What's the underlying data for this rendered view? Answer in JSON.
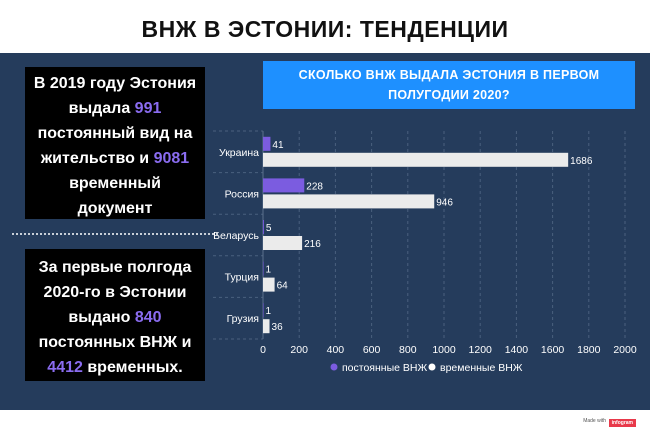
{
  "page": {
    "title": "ВНЖ В ЭСТОНИИ: ТЕНДЕНЦИИ"
  },
  "fact1": {
    "p1": "В 2019 году Эстония",
    "p2": "выдала ",
    "n1": "991",
    "p3": "постоянный вид на",
    "p4": "жительство и ",
    "n2": "9081",
    "p5": "временный",
    "p6": "документ"
  },
  "fact2": {
    "p1": "За первые полгода",
    "p2": "2020-го в Эстонии",
    "p3": "выдано ",
    "n1": "840",
    "p4": "постоянных ВНЖ и",
    "n2": "4412",
    "p5": " временных."
  },
  "chart_data": {
    "type": "bar",
    "orientation": "horizontal",
    "title_line1": "СКОЛЬКО ВНЖ ВЫДАЛА ЭСТОНИЯ В ПЕРВОМ",
    "title_line2": "ПОЛУГОДИИ 2020?",
    "categories": [
      "Украина",
      "Россия",
      "Беларусь",
      "Турция",
      "Грузия"
    ],
    "series": [
      {
        "name": "постоянные ВНЖ",
        "color": "#7b5ce0",
        "values": [
          41,
          228,
          5,
          1,
          1
        ]
      },
      {
        "name": "временные ВНЖ",
        "color": "#ebebeb",
        "values": [
          1686,
          946,
          216,
          64,
          36
        ]
      }
    ],
    "xlim": [
      0,
      2000
    ],
    "xticks": [
      0,
      200,
      400,
      600,
      800,
      1000,
      1200,
      1400,
      1600,
      1800,
      2000
    ],
    "grid": true,
    "legend_position": "bottom"
  },
  "footer": {
    "made_with": "Made with",
    "brand": "infogram"
  }
}
